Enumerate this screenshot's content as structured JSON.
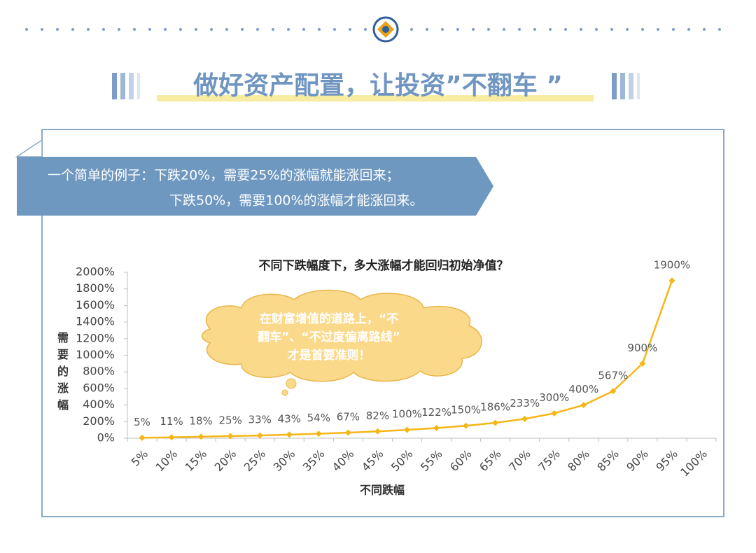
{
  "header": {
    "title": "做好资产配置，让投资”不翻车 ”"
  },
  "banner": {
    "lines": [
      "一个简单的例子：下跌20%，需要25%的涨幅就能涨回来；",
      "下跌50%，需要100%的涨幅才能涨回来。"
    ]
  },
  "chart_data": {
    "type": "line",
    "title": "不同下跌幅度下，多大涨幅才能回归初始净值？",
    "x_label": "不同跌幅",
    "y_label": "需要的涨幅",
    "annotation": [
      "在财富增值的道路上，“不",
      "翻车”、“不过度偏离路线”",
      "才是首要准则！"
    ],
    "categories": [
      "5%",
      "10%",
      "15%",
      "20%",
      "25%",
      "30%",
      "35%",
      "40%",
      "45%",
      "50%",
      "55%",
      "60%",
      "65%",
      "70%",
      "75%",
      "80%",
      "85%",
      "90%",
      "95%",
      "100%"
    ],
    "series": [
      {
        "name": "需要的涨幅",
        "color": "#f5b617",
        "values": [
          5,
          11,
          18,
          25,
          33,
          43,
          54,
          67,
          82,
          100,
          122,
          150,
          186,
          233,
          300,
          400,
          567,
          900,
          1900,
          null
        ],
        "value_labels": [
          "5%",
          "11%",
          "18%",
          "25%",
          "33%",
          "43%",
          "54%",
          "67%",
          "82%",
          "100%",
          "122%",
          "150%",
          "186%",
          "233%",
          "300%",
          "400%",
          "567%",
          "900%",
          "1900%",
          null
        ]
      }
    ],
    "ylim": [
      0,
      2000
    ],
    "yticks": [
      {
        "value": 0,
        "label": "0%"
      },
      {
        "value": 200,
        "label": "200%"
      },
      {
        "value": 400,
        "label": "400%"
      },
      {
        "value": 600,
        "label": "600%"
      },
      {
        "value": 800,
        "label": "800%"
      },
      {
        "value": 1000,
        "label": "1000%"
      },
      {
        "value": 1200,
        "label": "1200%"
      },
      {
        "value": 1400,
        "label": "1400%"
      },
      {
        "value": 1600,
        "label": "1600%"
      },
      {
        "value": 1800,
        "label": "1800%"
      },
      {
        "value": 2000,
        "label": "2000%"
      }
    ]
  }
}
